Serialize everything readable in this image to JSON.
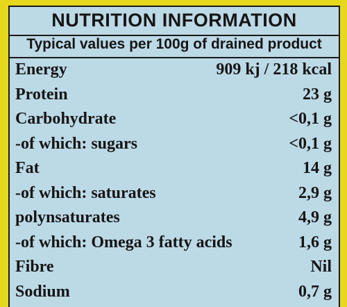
{
  "header": {
    "title": "NUTRITION INFORMATION",
    "subtitle": "Typical values per 100g of drained product"
  },
  "table": {
    "rows": [
      [
        "Energy",
        "909 kj / 218 kcal"
      ],
      [
        "Protein",
        "23 g"
      ],
      [
        "Carbohydrate",
        "<0,1 g"
      ],
      [
        "-of which: sugars",
        "<0,1 g"
      ],
      [
        "Fat",
        "14 g"
      ],
      [
        "-of which: saturates",
        "2,9 g"
      ],
      [
        "polynsaturates",
        "4,9 g"
      ],
      [
        "-of which: Omega 3 fatty acids",
        "1,6 g"
      ],
      [
        "Fibre",
        "Nil"
      ],
      [
        "Sodium",
        "0,7 g"
      ]
    ]
  }
}
